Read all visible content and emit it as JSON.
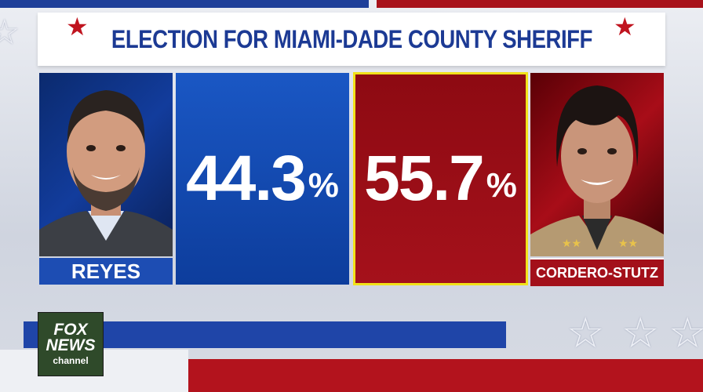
{
  "title": "ELECTION FOR MIAMI-DADE COUNTY SHERIFF",
  "candidates": [
    {
      "name": "REYES",
      "percent": "44.3",
      "party_color": "#1d4db3"
    },
    {
      "name": "CORDERO-STUTZ",
      "percent": "55.7",
      "party_color": "#a3101a"
    }
  ],
  "percent_sign": "%",
  "logo": {
    "line1": "FOX",
    "line2": "NEWS",
    "line3": "channel"
  },
  "icons": {
    "title_star": "★",
    "decor_star": "☆"
  },
  "colors": {
    "blue": "#1d4db3",
    "red": "#a3101a",
    "highlight": "#f1e21a"
  }
}
